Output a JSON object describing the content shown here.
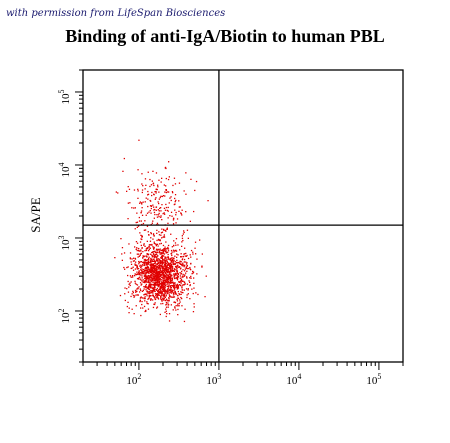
{
  "watermark": "with permission from LifeSpan Biosciences",
  "chart_data": {
    "type": "scatter",
    "title": "Binding of anti-IgA/Biotin to human PBL",
    "xlabel": "",
    "ylabel": "SA/PE",
    "xscale": "log",
    "yscale": "log",
    "xlim": [
      20,
      200000
    ],
    "ylim": [
      20,
      200000
    ],
    "ticks": [
      {
        "base": "10",
        "exp": "2"
      },
      {
        "base": "10",
        "exp": "3"
      },
      {
        "base": "10",
        "exp": "4"
      },
      {
        "base": "10",
        "exp": "5"
      }
    ],
    "quadrant_gates": {
      "x": 1000,
      "y": 1500
    },
    "grid": false,
    "point_color": "#e00000",
    "series": [
      {
        "cluster": "main population (lower-left quadrant)",
        "center": [
          180,
          320
        ],
        "spread_log": [
          0.18,
          0.22
        ],
        "count": 1700
      },
      {
        "cluster": "upper-left quadrant events",
        "center": [
          170,
          3000
        ],
        "spread_log": [
          0.2,
          0.25
        ],
        "count": 230
      }
    ]
  }
}
